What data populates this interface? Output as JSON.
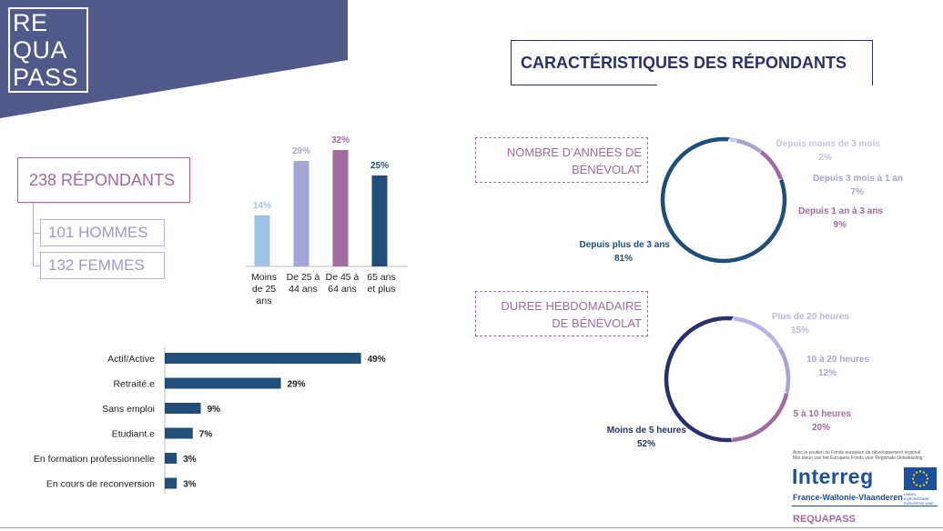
{
  "logo": {
    "lines": [
      "RE",
      "QUA",
      "PASS"
    ]
  },
  "colors": {
    "corner": "#505a8a",
    "navy": "#2a2f6e",
    "purple": "#a16aa0",
    "lavender": "#9c98d4",
    "light_blue": "#9dc3e6",
    "dark_teal": "#1f4e79"
  },
  "main_title": "CARACTÉRISTIQUES DES RÉPONDANTS",
  "respondents": {
    "total": "238 RÉPONDANTS",
    "men": "101 HOMMES",
    "women": "132 FEMMES"
  },
  "section_labels": {
    "years": [
      "NOMBRE D’ANNÉES DE",
      "BÉNÉVOLAT"
    ],
    "weekly": [
      "DUREE HEBDOMADAIRE",
      "DE BÉNÉVOLAT"
    ]
  },
  "chart_data": [
    {
      "type": "bar",
      "categories": [
        [
          "Moins",
          "de 25",
          "ans"
        ],
        [
          "De 25 à",
          "44 ans"
        ],
        [
          "De 45 à",
          "64 ans"
        ],
        [
          "65 ans",
          "et plus"
        ]
      ],
      "values": [
        14,
        29,
        32,
        25
      ],
      "value_labels": [
        "14%",
        "29%",
        "32%",
        "25%"
      ],
      "colors": [
        "#9dc3e6",
        "#a5a5d6",
        "#a16aa0",
        "#1f4e79"
      ],
      "title": "",
      "xlabel": "",
      "ylabel": "",
      "ylim": [
        0,
        35
      ],
      "grid": false
    },
    {
      "type": "bar",
      "orientation": "horizontal",
      "categories": [
        "Actif/Active",
        "Retraité.e",
        "Sans emploi",
        "Etudiant.e",
        "En formation professionnelle",
        "En cours de reconversion"
      ],
      "values": [
        49,
        29,
        9,
        7,
        3,
        3
      ],
      "value_labels": [
        "49%",
        "29%",
        "9%",
        "7%",
        "3%",
        "3%"
      ],
      "color": "#1f4e79",
      "xlim": [
        0,
        50
      ],
      "grid": false
    },
    {
      "type": "pie",
      "donut": true,
      "slices": [
        {
          "label": "Depuis moins de 3 mois",
          "value": 2,
          "pct": "2%",
          "color": "#c6c4e8"
        },
        {
          "label": "Depuis 3 mois à 1 an",
          "value": 7,
          "pct": "7%",
          "color": "#a5a5d6"
        },
        {
          "label": "Depuis 1 an à 3 ans",
          "value": 9,
          "pct": "9%",
          "color": "#a16aa0"
        },
        {
          "label": "Depuis plus de 3 ans",
          "value": 81,
          "pct": "81%",
          "color": "#1f4e79"
        }
      ]
    },
    {
      "type": "pie",
      "donut": true,
      "slices": [
        {
          "label": "Plus de 20 heures",
          "value": 15,
          "pct": "15%",
          "color": "#b7b4e8"
        },
        {
          "label": "10 à 20 heures",
          "value": 12,
          "pct": "12%",
          "color": "#a5a5d6"
        },
        {
          "label": "5 à 10 heures",
          "value": 20,
          "pct": "20%",
          "color": "#a16aa0"
        },
        {
          "label": "Moins de 5 heures",
          "value": 52,
          "pct": "52%",
          "color": "#2a2f6e"
        }
      ]
    }
  ],
  "footer": {
    "support": "Avec le soutien du Fonds européen de développement régional",
    "support_nl": "Met steun van het Europees Fonds voor Regionale Ontwikkeling",
    "interreg": "Interreg",
    "eu": "UNION EUROPÉENNE EUROPESE UNIE",
    "region": "France-Wallonie-Vlaanderen",
    "project": "REQUAPASS"
  }
}
